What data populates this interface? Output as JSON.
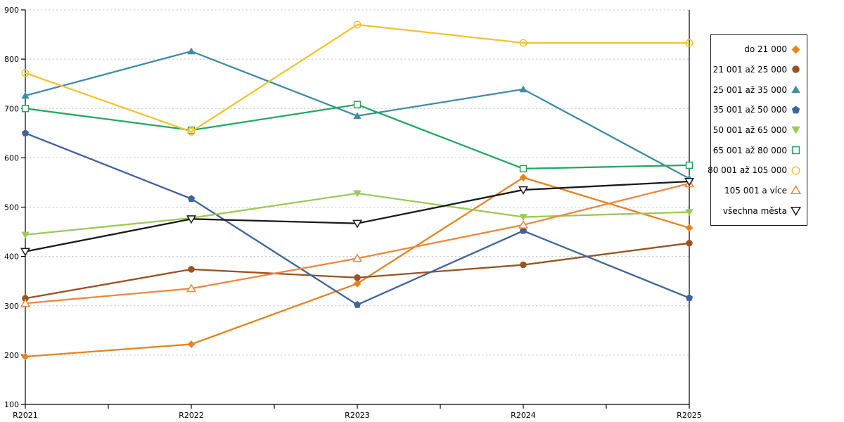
{
  "chart_data": {
    "type": "line",
    "title": "",
    "xlabel": "",
    "ylabel": "",
    "categories": [
      "R2021",
      "R2022",
      "R2023",
      "R2024",
      "R2025"
    ],
    "y_ticks": [
      "100",
      "200",
      "300",
      "400",
      "500",
      "600",
      "700",
      "800",
      "900"
    ],
    "ylim": [
      100,
      900
    ],
    "grid": "horizontal-dashed",
    "legend_position": "right",
    "series": [
      {
        "name": "do 21 000",
        "color": "#E8821F",
        "marker": "diamond",
        "fill": "filled",
        "marker_bg": "",
        "values": [
          197,
          222,
          345,
          560,
          458
        ]
      },
      {
        "name": "21 001 až 25 000",
        "color": "#9A5220",
        "marker": "circle",
        "fill": "filled",
        "marker_bg": "",
        "values": [
          315,
          374,
          357,
          383,
          427
        ]
      },
      {
        "name": "25 001 až 35 000",
        "color": "#3E8CA6",
        "marker": "triangle-up",
        "fill": "filled",
        "marker_bg": "",
        "values": [
          726,
          816,
          685,
          739,
          558
        ]
      },
      {
        "name": "35 001 až 50 000",
        "color": "#3D639B",
        "marker": "pentagon",
        "fill": "filled",
        "marker_bg": "",
        "values": [
          650,
          517,
          302,
          452,
          316
        ]
      },
      {
        "name": "50 001 až 65 000",
        "color": "#98CA55",
        "marker": "triangle-down",
        "fill": "filled",
        "marker_bg": "",
        "values": [
          444,
          478,
          528,
          480,
          490
        ]
      },
      {
        "name": "65 001 až 80 000",
        "color": "#21A85F",
        "marker": "square",
        "fill": "open",
        "marker_bg": "#FFFFFF",
        "values": [
          700,
          656,
          708,
          578,
          585
        ]
      },
      {
        "name": "80 001 až 105 000",
        "color": "#F4C32B",
        "marker": "circle",
        "fill": "open",
        "marker_bg": "none",
        "values": [
          772,
          653,
          870,
          833,
          833
        ]
      },
      {
        "name": "105 001 a více",
        "color": "#F0863B",
        "marker": "triangle-up",
        "fill": "open",
        "marker_bg": "#FFFFFF",
        "values": [
          305,
          335,
          396,
          464,
          548
        ]
      },
      {
        "name": "všechna města",
        "color": "#1A1A1A",
        "marker": "triangle-down",
        "fill": "open",
        "marker_bg": "#FFFFFF",
        "values": [
          410,
          476,
          467,
          535,
          552
        ]
      }
    ]
  },
  "style": {
    "grid_color": "#C6C6C6",
    "axis_color": "#000000",
    "background": "#FFFFFF",
    "legend_border": "#1A1A1A"
  }
}
